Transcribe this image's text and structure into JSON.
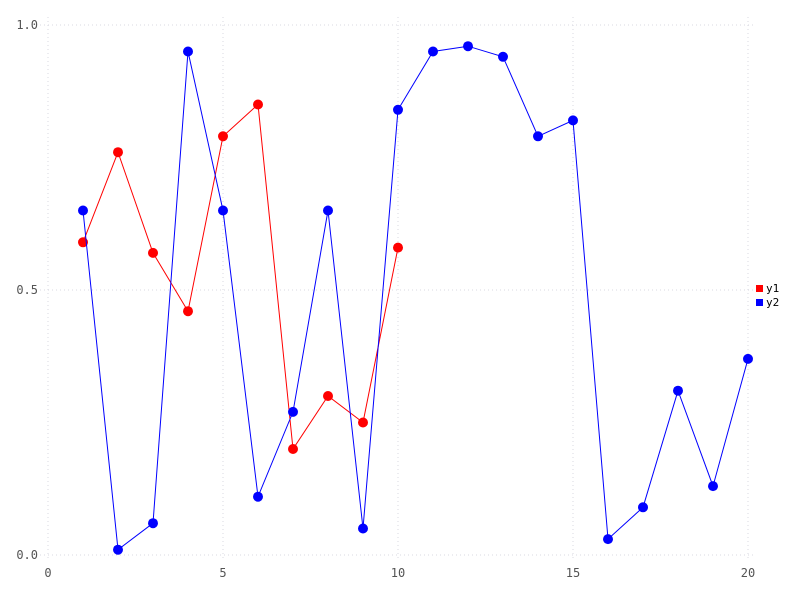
{
  "chart_data": {
    "type": "line",
    "title": "",
    "xlabel": "",
    "ylabel": "",
    "xlim": [
      0,
      20
    ],
    "ylim": [
      0,
      1
    ],
    "grid": true,
    "legend_position": "right-center",
    "xticks": {
      "values": [
        0,
        5,
        10,
        15,
        20
      ],
      "labels": [
        "0",
        "5",
        "10",
        "15",
        "20"
      ]
    },
    "yticks": {
      "values": [
        0,
        0.5,
        1
      ],
      "labels": [
        "0.0",
        "0.5",
        "1.0"
      ]
    },
    "series": [
      {
        "name": "y1",
        "color": "#ff0000",
        "marker": "circle",
        "x": [
          1,
          2,
          3,
          4,
          5,
          6,
          7,
          8,
          9,
          10
        ],
        "values": [
          0.59,
          0.76,
          0.57,
          0.46,
          0.79,
          0.85,
          0.2,
          0.3,
          0.25,
          0.58
        ]
      },
      {
        "name": "y2",
        "color": "#0000ff",
        "marker": "circle",
        "x": [
          1,
          2,
          3,
          4,
          5,
          6,
          7,
          8,
          9,
          10,
          11,
          12,
          13,
          14,
          15,
          16,
          17,
          18,
          19,
          20
        ],
        "values": [
          0.65,
          0.01,
          0.06,
          0.95,
          0.65,
          0.11,
          0.27,
          0.65,
          0.05,
          0.84,
          0.95,
          0.96,
          0.94,
          0.79,
          0.82,
          0.03,
          0.09,
          0.31,
          0.13,
          0.37
        ]
      }
    ]
  },
  "colors": {
    "background": "#ffffff",
    "grid": "#d8d8e2",
    "tick_label": "#545454",
    "legend_text": "#000000"
  }
}
